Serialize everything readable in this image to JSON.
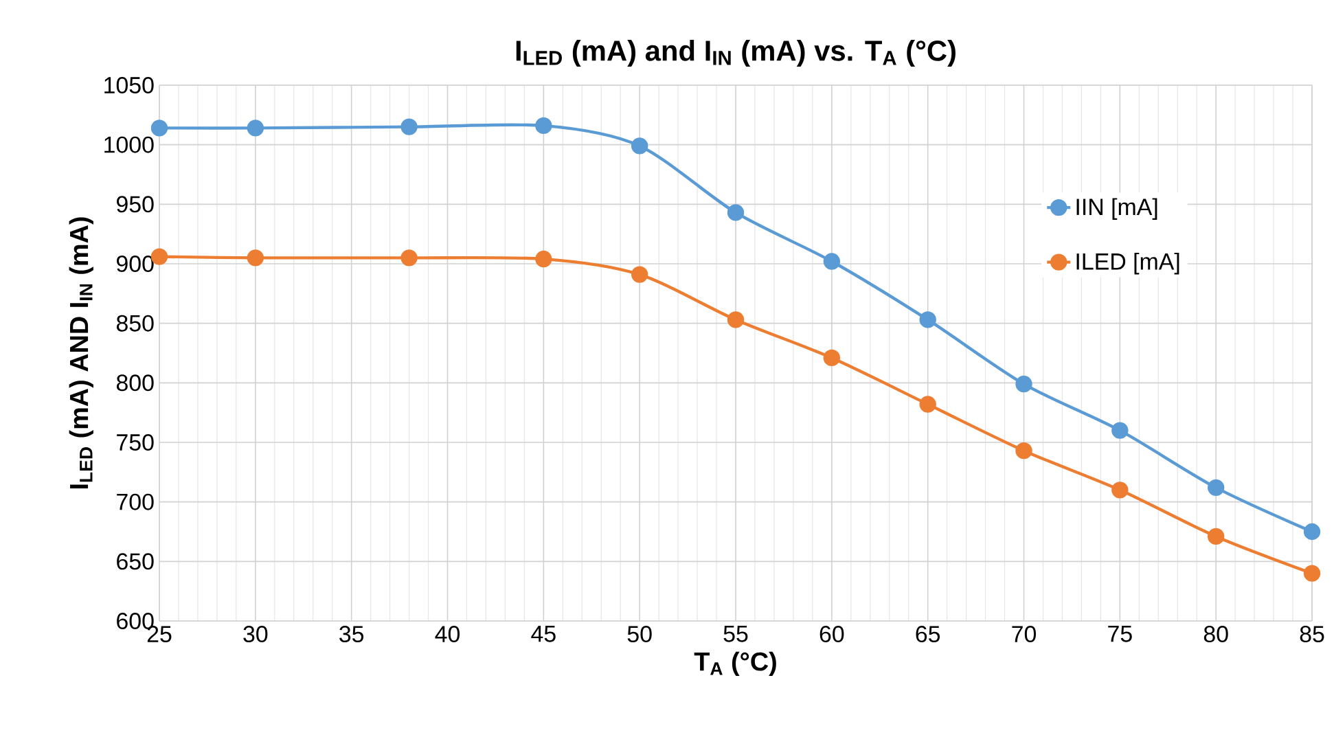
{
  "chart_data": {
    "type": "line",
    "title": "I$_{LED}$ (mA) and I$_{IN}$ (mA) vs. T$_{A}$ (°C)",
    "xlabel": "T$_{A}$ (°C)",
    "ylabel": "I$_{LED}$ (mA) AND I$_{IN}$ (mA)",
    "x": [
      25,
      30,
      38,
      45,
      50,
      55,
      60,
      65,
      70,
      75,
      80,
      85
    ],
    "series": [
      {
        "name": "IIN [mA]",
        "color": "#5b9bd5",
        "values": [
          1014,
          1014,
          1015,
          1016,
          999,
          943,
          902,
          853,
          799,
          760,
          712,
          675
        ]
      },
      {
        "name": "ILED [mA]",
        "color": "#ed7d31",
        "values": [
          906,
          905,
          905,
          904,
          891,
          853,
          821,
          782,
          743,
          710,
          671,
          640
        ]
      }
    ],
    "xlim": [
      25,
      85
    ],
    "xticks": [
      25,
      30,
      35,
      40,
      45,
      50,
      55,
      60,
      65,
      70,
      75,
      80,
      85
    ],
    "ylim": [
      600,
      1050
    ],
    "yticks": [
      600,
      650,
      700,
      750,
      800,
      850,
      900,
      950,
      1000,
      1050
    ],
    "grid": true,
    "legend": "right",
    "marker": "circle",
    "line_style": "solid"
  }
}
